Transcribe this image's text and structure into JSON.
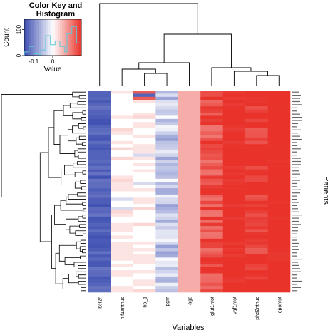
{
  "chart_data": {
    "type": "heatmap",
    "xlabel": "Variables",
    "ylabel": "Patients",
    "columns": [
      "bcl2h",
      "hif1antnuc",
      "hb_1",
      "pgm",
      "age",
      "glut1ntot",
      "vgf1ntot",
      "phd2ntnuc",
      "epontot"
    ],
    "column_base_values": [
      -0.13,
      0.01,
      0.03,
      -0.04,
      0.06,
      0.13,
      0.16,
      0.15,
      0.16
    ],
    "row_count": 64,
    "row_labels_legible": false,
    "color_scale": [
      "#3b4cb0",
      "#ffffff",
      "#e8322a"
    ],
    "color_key": {
      "title": "Color Key and Histogram",
      "xlabel": "Value",
      "ylabel": "Count",
      "x_ticks": [
        "-0.1",
        "0"
      ],
      "y_ticks": [
        "0",
        "100"
      ],
      "value_range": [
        -0.15,
        0.15
      ],
      "histogram_color": "#5fc8d8"
    },
    "column_dendrogram": true,
    "row_dendrogram": true
  }
}
